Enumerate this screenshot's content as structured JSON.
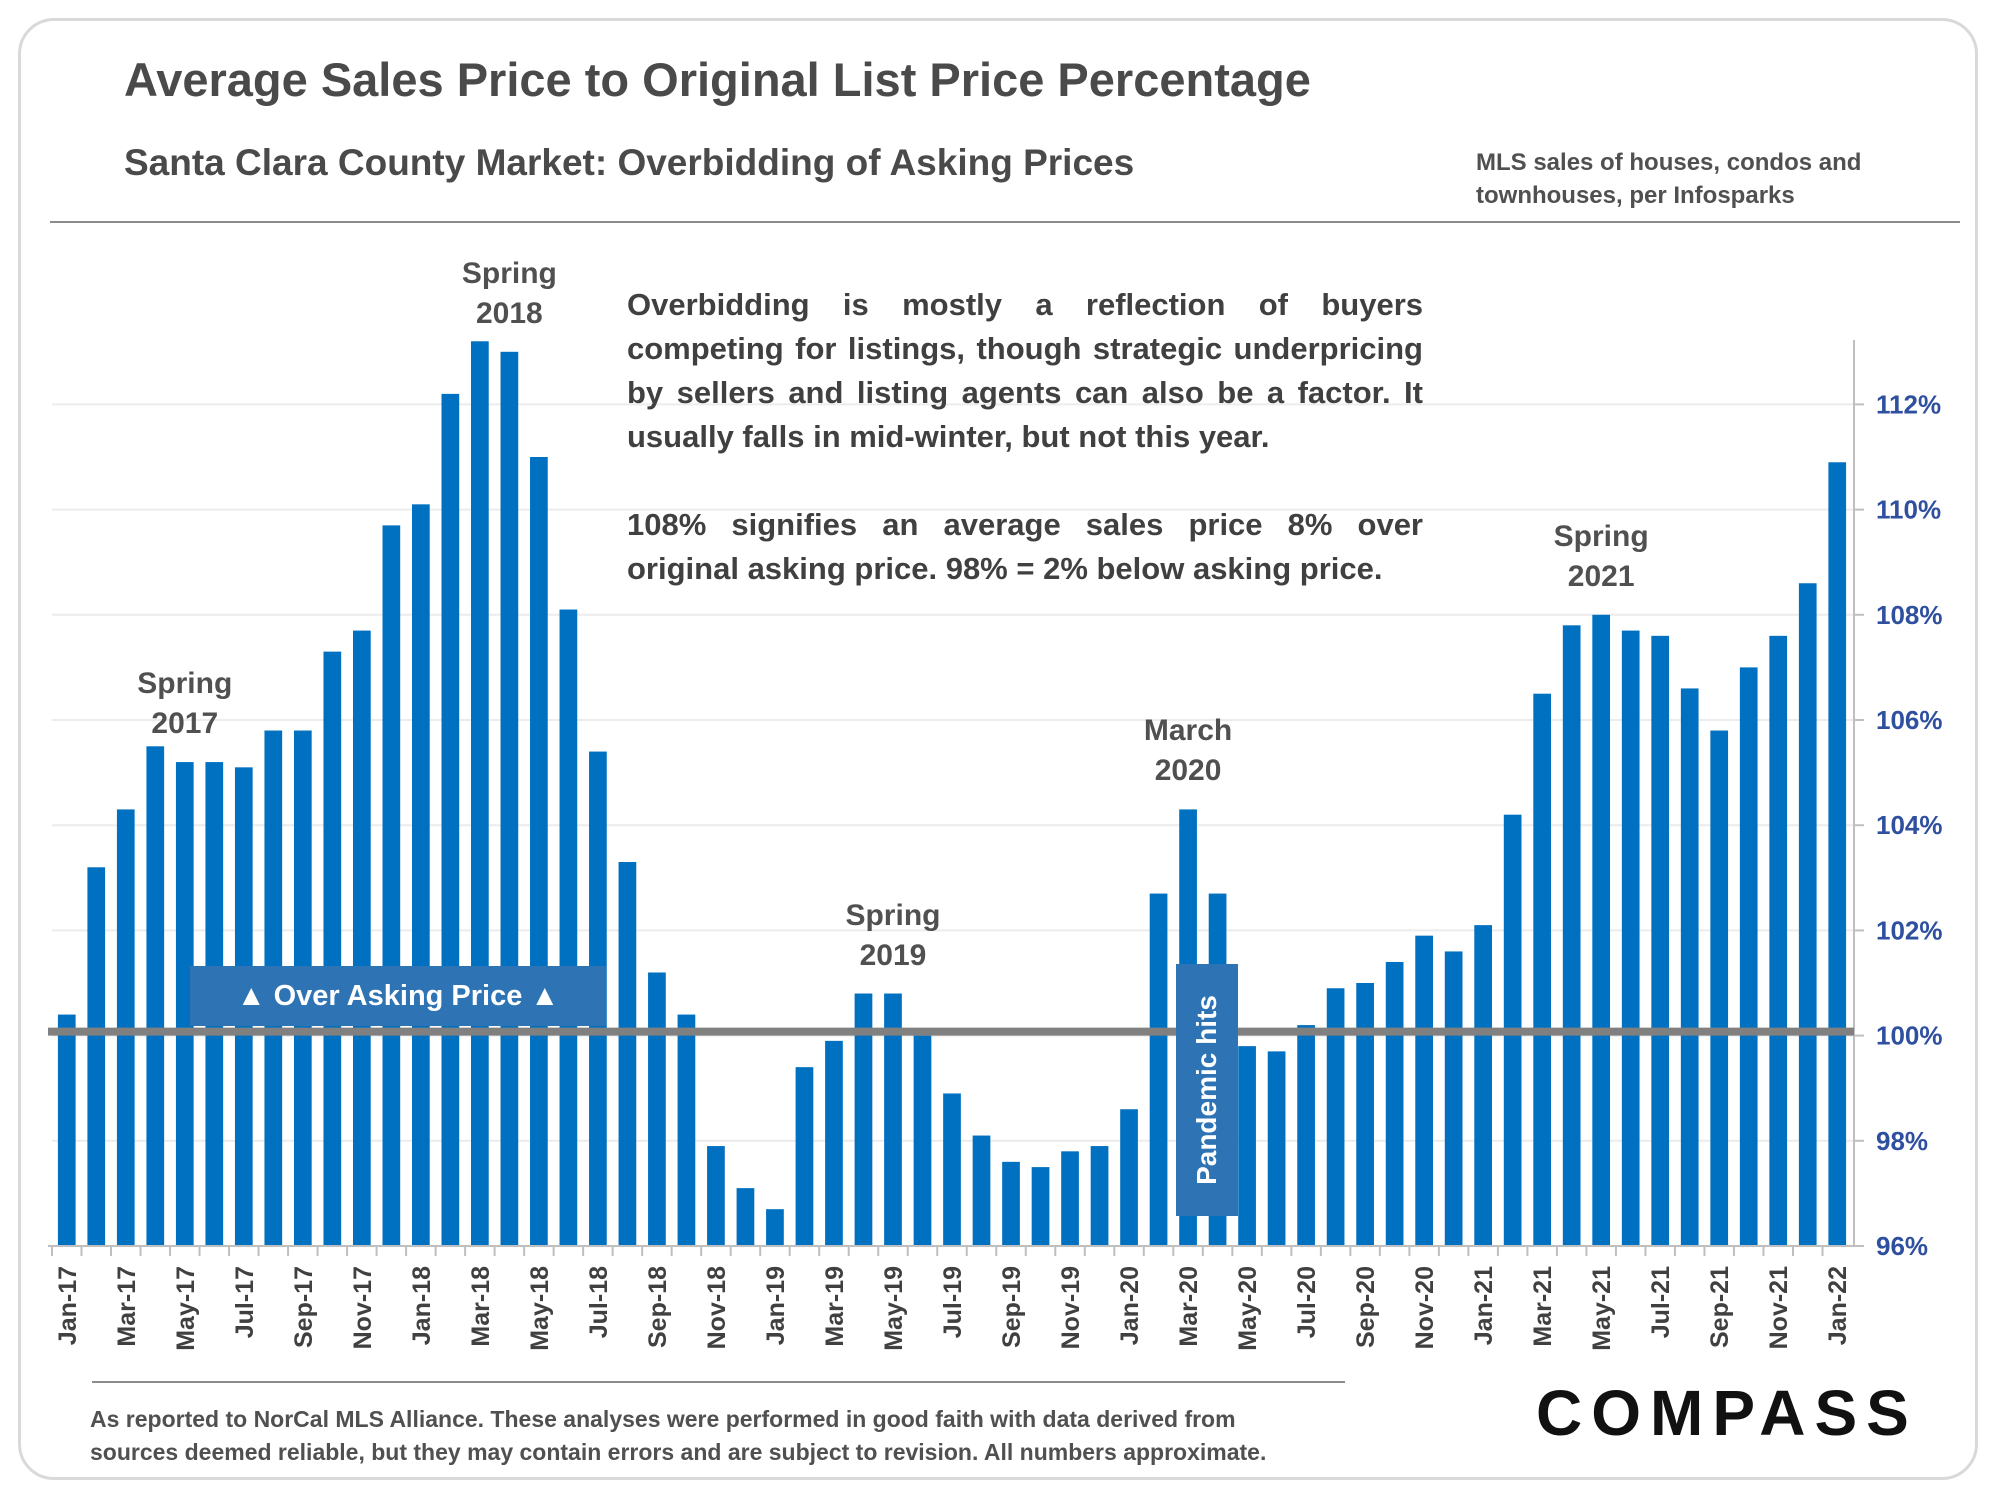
{
  "chart_data": {
    "type": "bar",
    "title": "Average Sales Price to Original List Price Percentage",
    "subtitle": "Santa Clara County Market: Overbidding of Asking Prices",
    "source_note": "MLS sales of houses, condos and townhouses, per Infosparks",
    "ylim": [
      96,
      113.5
    ],
    "y_ticks": [
      "96%",
      "98%",
      "100%",
      "102%",
      "104%",
      "106%",
      "108%",
      "110%",
      "112%"
    ],
    "y_axis_side": "right",
    "reference_line": 100,
    "grid": true,
    "bar_color": "#0070c0",
    "categories": [
      "Jan-17",
      "Feb-17",
      "Mar-17",
      "Apr-17",
      "May-17",
      "Jun-17",
      "Jul-17",
      "Aug-17",
      "Sep-17",
      "Oct-17",
      "Nov-17",
      "Dec-17",
      "Jan-18",
      "Feb-18",
      "Mar-18",
      "Apr-18",
      "May-18",
      "Jun-18",
      "Jul-18",
      "Aug-18",
      "Sep-18",
      "Oct-18",
      "Nov-18",
      "Dec-18",
      "Jan-19",
      "Feb-19",
      "Mar-19",
      "Apr-19",
      "May-19",
      "Jun-19",
      "Jul-19",
      "Aug-19",
      "Sep-19",
      "Oct-19",
      "Nov-19",
      "Dec-19",
      "Jan-20",
      "Feb-20",
      "Mar-20",
      "Apr-20",
      "May-20",
      "Jun-20",
      "Jul-20",
      "Aug-20",
      "Sep-20",
      "Oct-20",
      "Nov-20",
      "Dec-20",
      "Jan-21",
      "Feb-21",
      "Mar-21",
      "Apr-21",
      "May-21",
      "Jun-21",
      "Jul-21",
      "Aug-21",
      "Sep-21",
      "Oct-21",
      "Nov-21",
      "Dec-21",
      "Jan-22"
    ],
    "tick_labels": [
      "Jan-17",
      "Mar-17",
      "May-17",
      "Jul-17",
      "Sep-17",
      "Nov-17",
      "Jan-18",
      "Mar-18",
      "May-18",
      "Jul-18",
      "Sep-18",
      "Nov-18",
      "Jan-19",
      "Mar-19",
      "May-19",
      "Jul-19",
      "Sep-19",
      "Nov-19",
      "Jan-20",
      "Mar-20",
      "May-20",
      "Jul-20",
      "Sep-20",
      "Nov-20",
      "Jan-21",
      "Mar-21",
      "May-21",
      "Jul-21",
      "Sep-21",
      "Nov-21",
      "Jan-22"
    ],
    "values": [
      100.4,
      103.2,
      104.3,
      105.5,
      105.2,
      105.2,
      105.1,
      105.8,
      105.8,
      107.3,
      107.7,
      109.7,
      110.1,
      112.2,
      113.2,
      113.0,
      111.0,
      108.1,
      105.4,
      103.3,
      101.2,
      100.4,
      97.9,
      97.1,
      96.7,
      99.4,
      99.9,
      100.8,
      100.8,
      100.0,
      98.9,
      98.1,
      97.6,
      97.5,
      97.8,
      97.9,
      98.6,
      102.7,
      104.3,
      102.7,
      99.8,
      99.7,
      100.2,
      100.9,
      101.0,
      101.4,
      101.9,
      101.6,
      102.1,
      104.2,
      106.5,
      107.8,
      108.0,
      107.7,
      107.6,
      106.6,
      105.8,
      107.0,
      107.6,
      108.6,
      110.9
    ],
    "annotations": [
      {
        "label": "Spring 2017",
        "lines": [
          "Spring",
          "2017"
        ],
        "index": 4
      },
      {
        "label": "Spring 2018",
        "lines": [
          "Spring",
          "2018"
        ],
        "index": 15
      },
      {
        "label": "Spring 2019",
        "lines": [
          "Spring",
          "2019"
        ],
        "index": 28
      },
      {
        "label": "March 2020",
        "lines": [
          "March",
          "2020"
        ],
        "index": 38
      },
      {
        "label": "Spring 2021",
        "lines": [
          "Spring",
          "2021"
        ],
        "index": 52
      }
    ],
    "over_asking_label": "▲ Over Asking Price ▲",
    "pandemic_label": "Pandemic hits",
    "explanation": [
      "Overbidding is mostly a reflection of buyers competing for listings, though strategic underpricing by sellers and listing agents can also be a factor. It usually falls in mid-winter, but not this year.",
      "108% signifies an average sales price 8% over original asking price. 98% = 2% below asking price."
    ]
  },
  "footer": {
    "line1": "As reported to NorCal MLS Alliance. These analyses were performed in good faith with data derived from",
    "line2": "sources deemed reliable, but they may contain errors and are subject to revision. All numbers approximate."
  },
  "brand": {
    "name": "COMPASS"
  },
  "colors": {
    "bar": "#0070c0",
    "reference_line": "#808080",
    "tick_text": "#2f4f9f",
    "callout": "#2e74b5"
  }
}
